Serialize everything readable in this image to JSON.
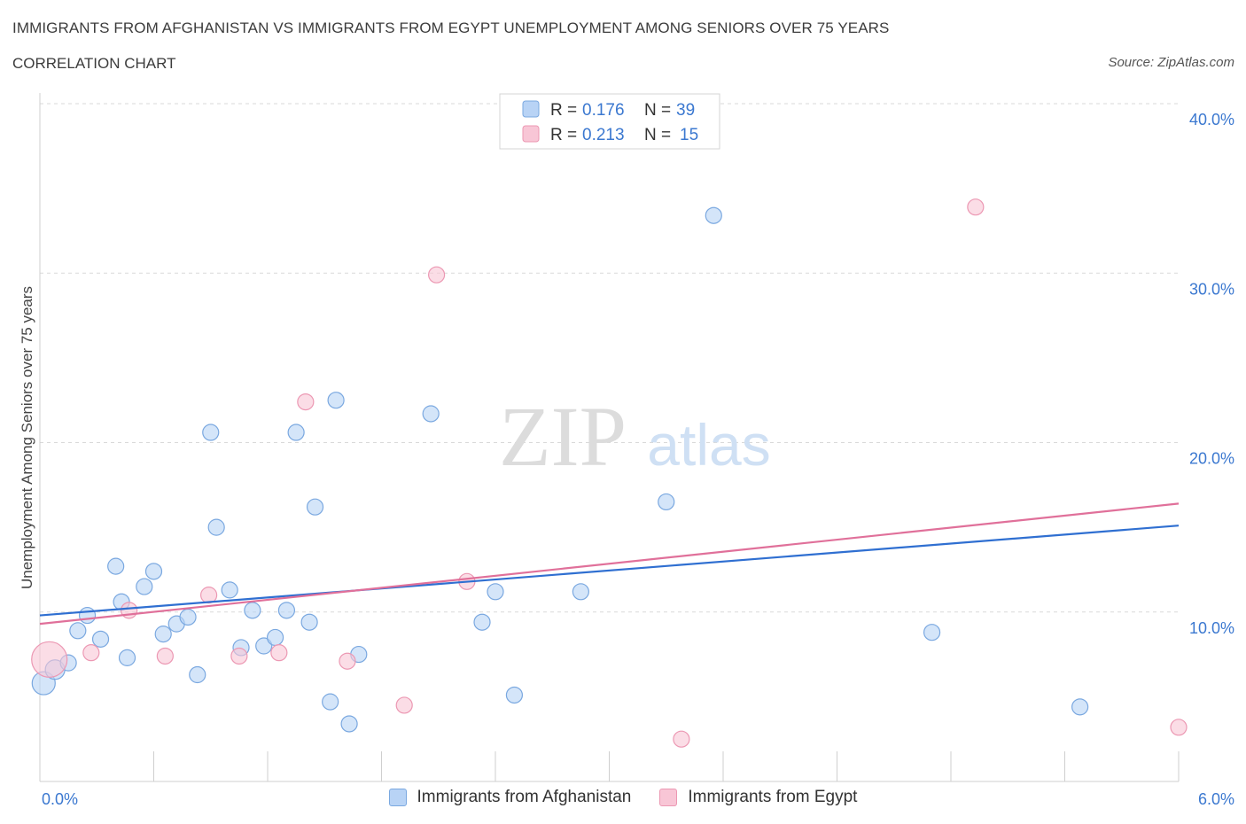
{
  "header": {
    "title": "IMMIGRANTS FROM AFGHANISTAN VS IMMIGRANTS FROM EGYPT UNEMPLOYMENT AMONG SENIORS OVER 75 YEARS",
    "subtitle": "CORRELATION CHART",
    "source": "Source: ZipAtlas.com"
  },
  "watermark": {
    "zip": "ZIP",
    "atlas": "atlas"
  },
  "colors": {
    "afghanistan_fill": "#b8d3f5",
    "afghanistan_stroke": "#7aa8e0",
    "afghanistan_line": "#2f6fd1",
    "egypt_fill": "#f8c6d6",
    "egypt_stroke": "#ec98b3",
    "egypt_line": "#e0709a",
    "axis_text": "#3b78d0",
    "grid": "#d9d9d9"
  },
  "chart_data": {
    "type": "scatter",
    "ylabel": "Unemployment Among Seniors over 75 years",
    "xlim": [
      0,
      6
    ],
    "ylim": [
      0,
      40
    ],
    "x_tick_labels": [
      "0.0%",
      "6.0%"
    ],
    "y_ticks": [
      10,
      20,
      30,
      40
    ],
    "y_tick_labels": [
      "10.0%",
      "20.0%",
      "30.0%",
      "40.0%"
    ],
    "grid": "horizontal dashed",
    "legend_position": "top-center",
    "series": [
      {
        "name": "Immigrants from Afghanistan",
        "r": "0.176",
        "n": "39",
        "trend": {
          "x": [
            0,
            6
          ],
          "y": [
            9.8,
            15.1
          ]
        },
        "points": [
          [
            0.02,
            5.8
          ],
          [
            0.08,
            6.6
          ],
          [
            0.15,
            7.0
          ],
          [
            0.2,
            8.9
          ],
          [
            0.25,
            9.8
          ],
          [
            0.32,
            8.4
          ],
          [
            0.4,
            12.7
          ],
          [
            0.46,
            7.3
          ],
          [
            0.43,
            10.6
          ],
          [
            0.55,
            11.5
          ],
          [
            0.6,
            12.4
          ],
          [
            0.65,
            8.7
          ],
          [
            0.72,
            9.3
          ],
          [
            0.78,
            9.7
          ],
          [
            0.83,
            6.3
          ],
          [
            0.9,
            20.6
          ],
          [
            0.93,
            15.0
          ],
          [
            1.0,
            11.3
          ],
          [
            1.06,
            7.9
          ],
          [
            1.12,
            10.1
          ],
          [
            1.18,
            8.0
          ],
          [
            1.24,
            8.5
          ],
          [
            1.3,
            10.1
          ],
          [
            1.35,
            20.6
          ],
          [
            1.42,
            9.4
          ],
          [
            1.45,
            16.2
          ],
          [
            1.53,
            4.7
          ],
          [
            1.56,
            22.5
          ],
          [
            1.63,
            3.4
          ],
          [
            1.68,
            7.5
          ],
          [
            2.06,
            21.7
          ],
          [
            2.33,
            9.4
          ],
          [
            2.4,
            11.2
          ],
          [
            2.5,
            5.1
          ],
          [
            2.85,
            11.2
          ],
          [
            3.3,
            16.5
          ],
          [
            3.55,
            33.4
          ],
          [
            4.7,
            8.8
          ],
          [
            5.48,
            4.4
          ]
        ],
        "point_sizes": [
          13,
          11,
          9,
          9,
          9,
          9,
          9,
          9,
          9,
          9,
          9,
          9,
          9,
          9,
          9,
          9,
          9,
          9,
          9,
          9,
          9,
          9,
          9,
          9,
          9,
          9,
          9,
          9,
          9,
          9,
          9,
          9,
          9,
          9,
          9,
          9,
          9,
          9,
          9
        ]
      },
      {
        "name": "Immigrants from Egypt",
        "r": "0.213",
        "n": "15",
        "trend": {
          "x": [
            0,
            6
          ],
          "y": [
            9.3,
            16.4
          ]
        },
        "points": [
          [
            0.05,
            7.2
          ],
          [
            0.27,
            7.6
          ],
          [
            0.47,
            10.1
          ],
          [
            0.66,
            7.4
          ],
          [
            0.89,
            11.0
          ],
          [
            1.05,
            7.4
          ],
          [
            1.26,
            7.6
          ],
          [
            1.4,
            22.4
          ],
          [
            1.62,
            7.1
          ],
          [
            1.92,
            4.5
          ],
          [
            2.09,
            29.9
          ],
          [
            2.25,
            11.8
          ],
          [
            3.38,
            2.5
          ],
          [
            4.93,
            33.9
          ],
          [
            6.0,
            3.2
          ]
        ],
        "point_sizes": [
          20,
          9,
          9,
          9,
          9,
          9,
          9,
          9,
          9,
          9,
          9,
          9,
          9,
          9,
          9
        ]
      }
    ]
  }
}
